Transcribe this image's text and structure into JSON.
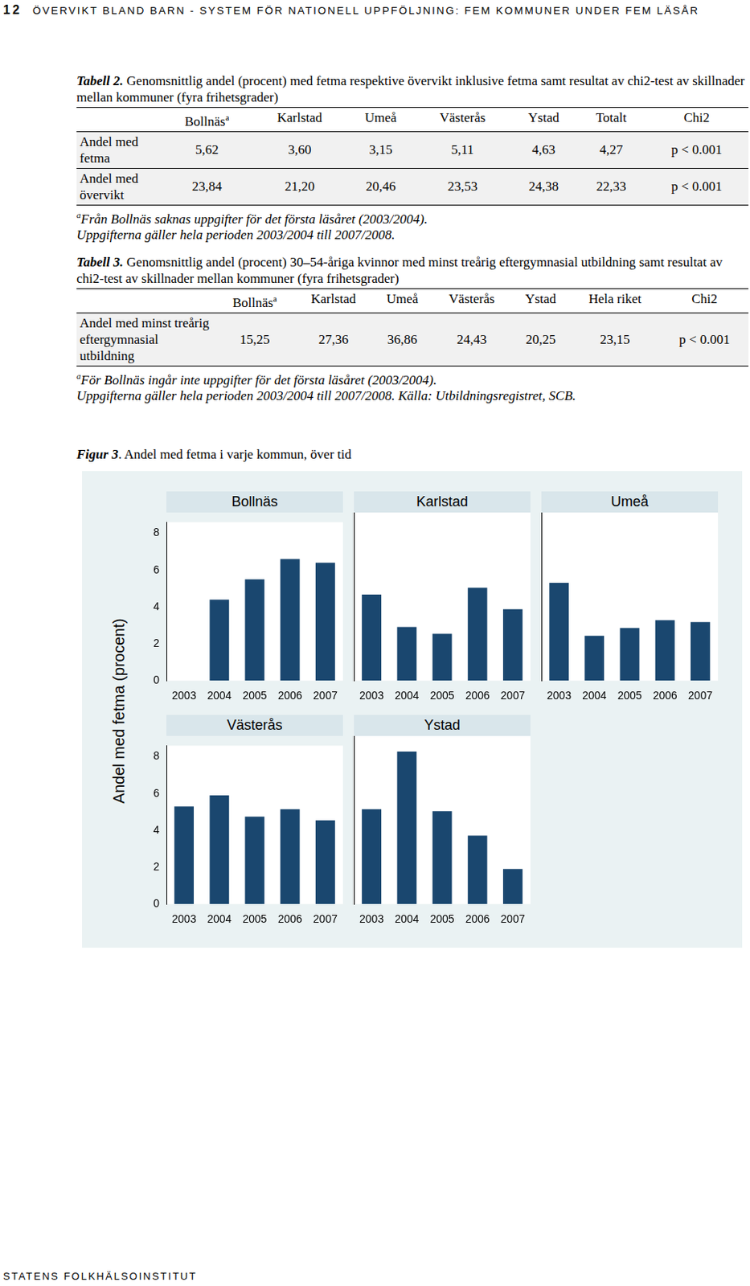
{
  "header": {
    "page_number": "12",
    "title": "ÖVERVIKT BLAND BARN - SYSTEM FÖR NATIONELL UPPFÖLJNING: FEM KOMMUNER UNDER FEM LÄSÅR"
  },
  "table2": {
    "label": "Tabell 2.",
    "title": "Genomsnittlig andel (procent) med fetma respektive övervikt inklusive fetma samt resultat av chi2-test av skillnader mellan kommuner (fyra frihetsgrader)",
    "columns": [
      "",
      "Bollnäs",
      "Karlstad",
      "Umeå",
      "Västerås",
      "Ystad",
      "Totalt",
      "Chi2"
    ],
    "superscripts": {
      "Bollnäs": "a"
    },
    "rows": [
      [
        "Andel med fetma",
        "5,62",
        "3,60",
        "3,15",
        "5,11",
        "4,63",
        "4,27",
        "p < 0.001"
      ],
      [
        "Andel med övervikt",
        "23,84",
        "21,20",
        "20,46",
        "23,53",
        "24,38",
        "22,33",
        "p < 0.001"
      ]
    ],
    "footnotes": [
      {
        "mark": "a",
        "text": "Från Bollnäs saknas uppgifter för det första läsåret (2003/2004)."
      },
      {
        "text": "Uppgifterna gäller hela perioden 2003/2004 till 2007/2008."
      }
    ]
  },
  "table3": {
    "label": "Tabell 3.",
    "title": "Genomsnittlig andel (procent) 30–54-åriga kvinnor med minst treårig eftergymnasial utbildning samt resultat av chi2-test av skillnader mellan kommuner (fyra frihetsgrader)",
    "columns": [
      "",
      "Bollnäs",
      "Karlstad",
      "Umeå",
      "Västerås",
      "Ystad",
      "Hela riket",
      "Chi2"
    ],
    "superscripts": {
      "Bollnäs": "a"
    },
    "rows": [
      [
        "Andel med minst treårig eftergymnasial utbildning",
        "15,25",
        "27,36",
        "36,86",
        "24,43",
        "20,25",
        "23,15",
        "p < 0.001"
      ]
    ],
    "footnotes": [
      {
        "mark": "a",
        "text": "För Bollnäs ingår inte uppgifter för det första läsåret (2003/2004)."
      },
      {
        "text": "Uppgifterna gäller hela perioden 2003/2004 till 2007/2008. Källa: Utbildningsregistret, SCB."
      }
    ]
  },
  "figure3": {
    "label": "Figur 3",
    "title": ". Andel med fetma i varje kommun, över tid",
    "y_label": "Andel med fetma (procent)"
  },
  "chart_data": [
    {
      "type": "bar",
      "title": "Bollnäs",
      "categories": [
        "2003",
        "2004",
        "2005",
        "2006",
        "2007"
      ],
      "values": [
        null,
        4.4,
        5.5,
        6.6,
        6.4
      ],
      "color": "#1a476f",
      "ylim": [
        0,
        8.6
      ],
      "yticks": [
        0,
        2,
        4,
        6,
        8
      ],
      "grid": false
    },
    {
      "type": "bar",
      "title": "Karlstad",
      "categories": [
        "2003",
        "2004",
        "2005",
        "2006",
        "2007"
      ],
      "values": [
        4.4,
        2.75,
        2.4,
        4.75,
        3.65
      ],
      "color": "#1a476f",
      "ylim": [
        0,
        8.6
      ],
      "yticks": [
        0,
        2,
        4,
        6,
        8
      ],
      "grid": false,
      "tick_labels": "x"
    },
    {
      "type": "bar",
      "title": "Umeå",
      "categories": [
        "2003",
        "2004",
        "2005",
        "2006",
        "2007"
      ],
      "values": [
        5.0,
        2.3,
        2.7,
        3.1,
        3.0
      ],
      "color": "#1a476f",
      "ylim": [
        0,
        8.6
      ],
      "yticks": [
        0,
        2,
        4,
        6,
        8
      ],
      "grid": false,
      "tick_labels": "x"
    },
    {
      "type": "bar",
      "title": "Västerås",
      "categories": [
        "2003",
        "2004",
        "2005",
        "2006",
        "2007"
      ],
      "values": [
        5.3,
        5.9,
        4.75,
        5.15,
        4.55
      ],
      "color": "#1a476f",
      "ylim": [
        0,
        8.6
      ],
      "yticks": [
        0,
        2,
        4,
        6,
        8
      ],
      "grid": false
    },
    {
      "type": "bar",
      "title": "Ystad",
      "categories": [
        "2003",
        "2004",
        "2005",
        "2006",
        "2007"
      ],
      "values": [
        4.85,
        7.8,
        4.75,
        3.5,
        1.8
      ],
      "color": "#1a476f",
      "ylim": [
        0,
        8.6
      ],
      "yticks": [
        0,
        2,
        4,
        6,
        8
      ],
      "grid": false,
      "tick_labels": "x"
    }
  ],
  "footer": "STATENS FOLKHÄLSOINSTITUT"
}
